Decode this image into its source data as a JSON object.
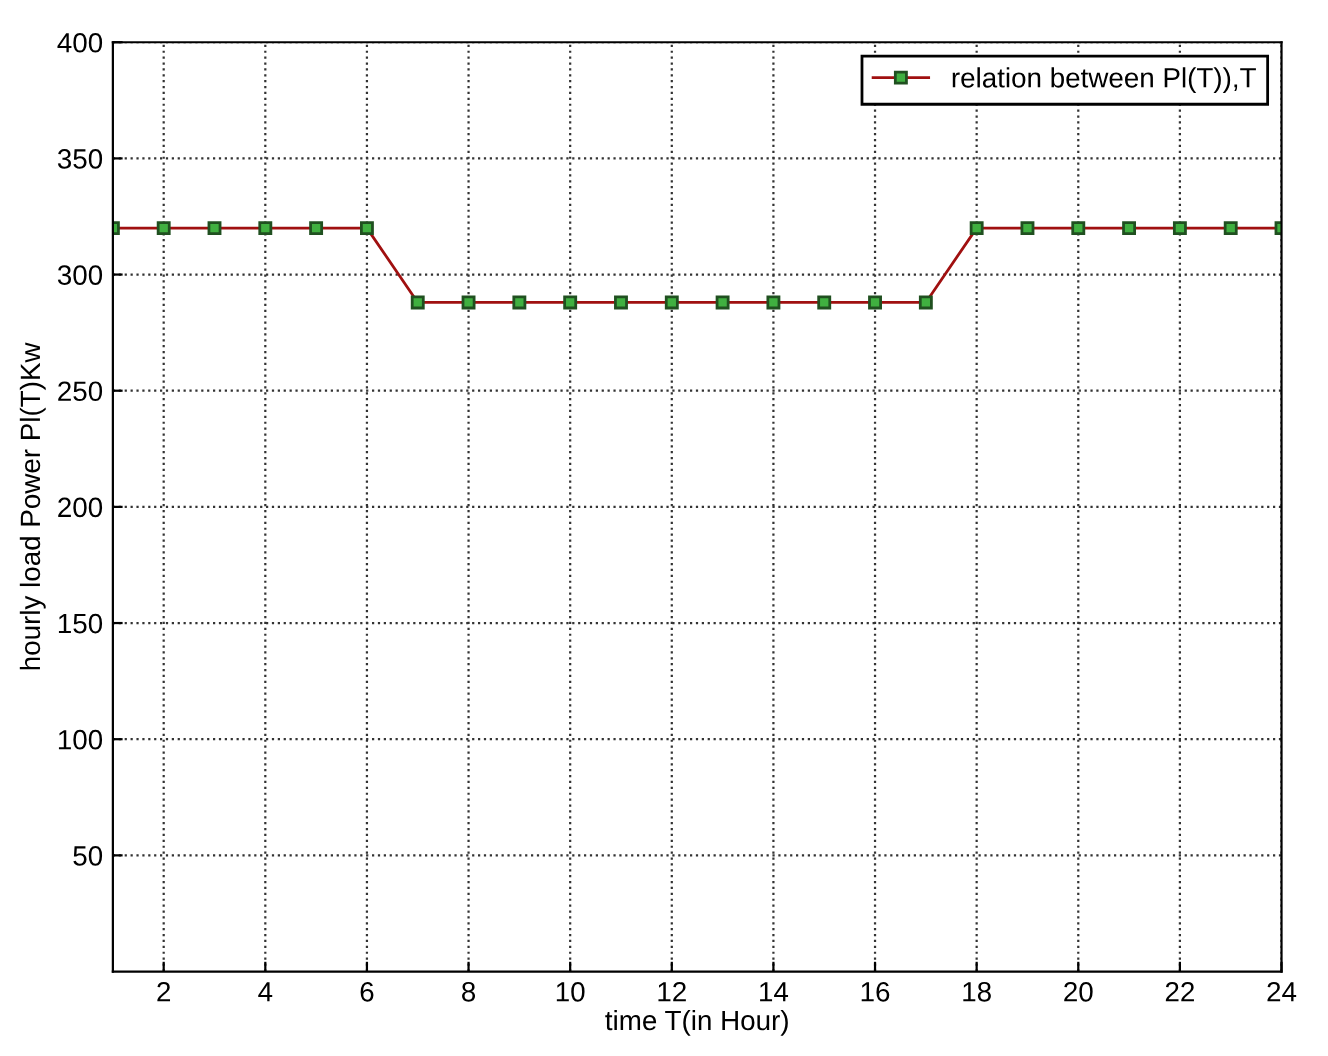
{
  "chart_data": {
    "type": "line",
    "xlabel": "time T(in Hour)",
    "ylabel": "hourly load Power Pl(T)Kw",
    "x": [
      1,
      2,
      3,
      4,
      5,
      6,
      7,
      8,
      9,
      10,
      11,
      12,
      13,
      14,
      15,
      16,
      17,
      18,
      19,
      20,
      21,
      22,
      23,
      24
    ],
    "series": [
      {
        "name": "relation between Pl(T)),T",
        "color": "#a01010",
        "values": [
          320,
          320,
          320,
          320,
          320,
          320,
          288,
          288,
          288,
          288,
          288,
          288,
          288,
          288,
          288,
          288,
          288,
          320,
          320,
          320,
          320,
          320,
          320,
          320
        ]
      }
    ],
    "xlim": [
      1,
      24
    ],
    "xticks": [
      2,
      4,
      6,
      8,
      10,
      12,
      14,
      16,
      18,
      20,
      22,
      24
    ],
    "ylim": [
      0,
      400
    ],
    "yticks": [
      50,
      100,
      150,
      200,
      250,
      300,
      350,
      400
    ],
    "grid": true,
    "legend": "top right",
    "marker": "square",
    "line_style": "solid"
  }
}
